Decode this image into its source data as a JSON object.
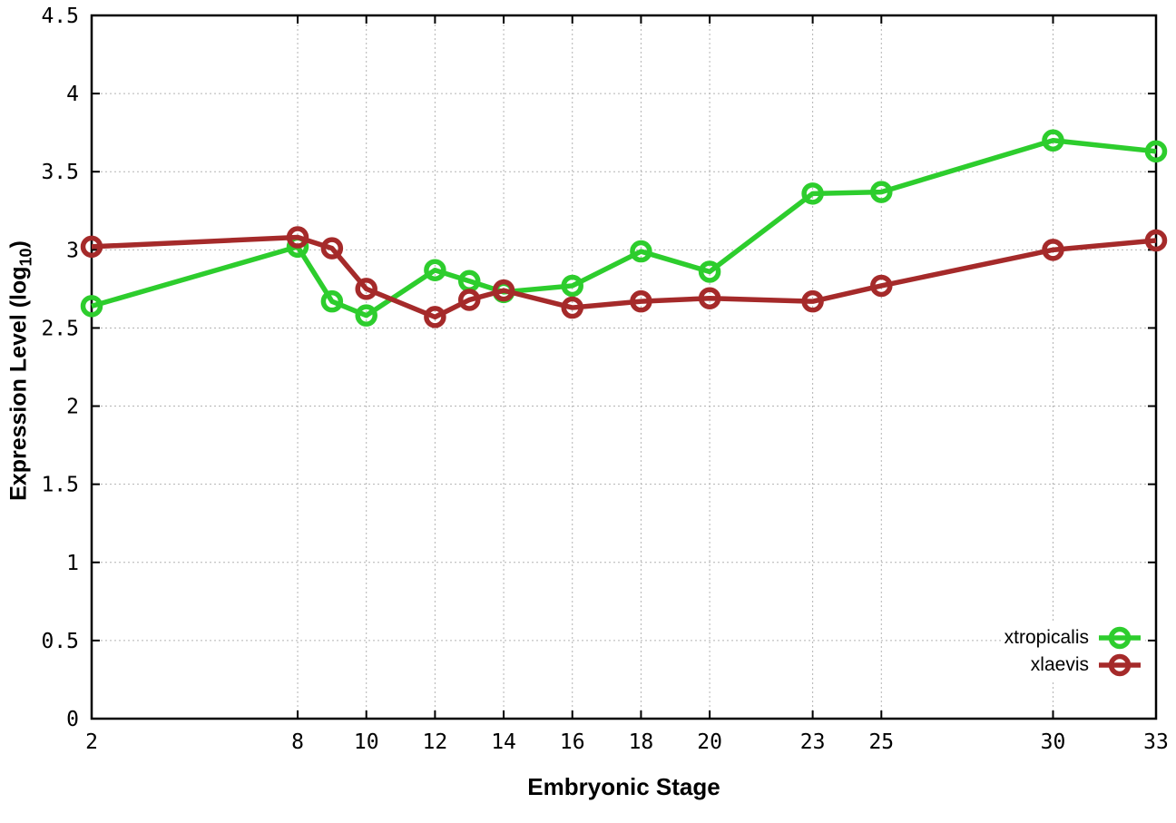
{
  "chart_data": {
    "type": "line",
    "title": "",
    "xlabel": "Embryonic Stage",
    "ylabel": {
      "main": "Expression Level (log",
      "sub": "10",
      "end": ")"
    },
    "x": [
      2,
      8,
      9,
      10,
      12,
      13,
      14,
      16,
      18,
      20,
      23,
      25,
      30,
      33
    ],
    "series": [
      {
        "name": "xtropicalis",
        "color": "#2dcd2d",
        "values": [
          2.64,
          3.02,
          2.67,
          2.58,
          2.87,
          2.8,
          2.73,
          2.77,
          2.99,
          2.86,
          3.36,
          3.37,
          3.7,
          3.63
        ]
      },
      {
        "name": "xlaevis",
        "color": "#a52a2a",
        "values": [
          3.02,
          3.08,
          3.01,
          2.75,
          2.57,
          2.68,
          2.74,
          2.63,
          2.67,
          2.69,
          2.67,
          2.77,
          3.0,
          3.06
        ]
      }
    ],
    "xlim": [
      2,
      33
    ],
    "ylim": [
      0,
      4.5
    ],
    "xtick_values": [
      2,
      8,
      10,
      12,
      14,
      16,
      18,
      20,
      23,
      25,
      30,
      33
    ],
    "xtick_labels": [
      "2",
      "8",
      "10",
      "12",
      "14",
      "16",
      "18",
      "20",
      "23",
      "25",
      "30",
      "33"
    ],
    "ytick_values": [
      0,
      0.5,
      1,
      1.5,
      2,
      2.5,
      3,
      3.5,
      4,
      4.5
    ],
    "ytick_labels": [
      "0",
      "0.5",
      "1",
      "1.5",
      "2",
      "2.5",
      "3",
      "3.5",
      "4",
      "4.5"
    ],
    "grid": true,
    "grid_color": "#b3b3b3",
    "border_color": "#000000",
    "legend_position": "bottom-right"
  }
}
